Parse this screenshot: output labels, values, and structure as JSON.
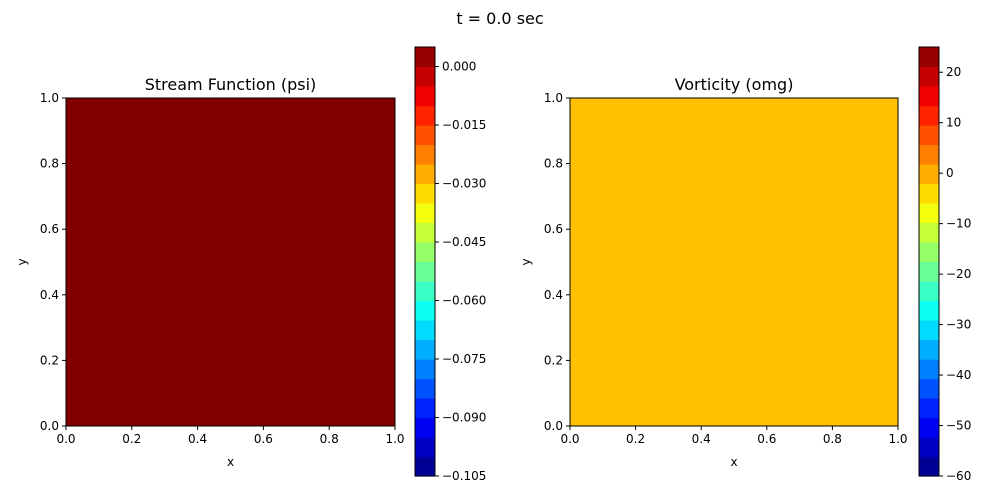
{
  "figure": {
    "suptitle": "t = 0.0 sec"
  },
  "chart_data": [
    {
      "type": "heatmap",
      "title": "Stream Function (psi)",
      "xlabel": "x",
      "ylabel": "y",
      "xlim": [
        0.0,
        1.0
      ],
      "ylim": [
        0.0,
        1.0
      ],
      "xticks": [
        "0.0",
        "0.2",
        "0.4",
        "0.6",
        "0.8",
        "1.0"
      ],
      "yticks": [
        "0.0",
        "0.2",
        "0.4",
        "0.6",
        "0.8",
        "1.0"
      ],
      "field_value": 0.0,
      "field_color": "#800000",
      "colormap": "jet",
      "colorbar": {
        "min": -0.105,
        "max": 0.005,
        "levels": 22,
        "ticks": [
          {
            "value": 0.0,
            "label": "0.000"
          },
          {
            "value": -0.015,
            "label": "−0.015"
          },
          {
            "value": -0.03,
            "label": "−0.030"
          },
          {
            "value": -0.045,
            "label": "−0.045"
          },
          {
            "value": -0.06,
            "label": "−0.060"
          },
          {
            "value": -0.075,
            "label": "−0.075"
          },
          {
            "value": -0.09,
            "label": "−0.090"
          },
          {
            "value": -0.105,
            "label": "−0.105"
          }
        ]
      }
    },
    {
      "type": "heatmap",
      "title": "Vorticity (omg)",
      "xlabel": "x",
      "ylabel": "y",
      "xlim": [
        0.0,
        1.0
      ],
      "ylim": [
        0.0,
        1.0
      ],
      "xticks": [
        "0.0",
        "0.2",
        "0.4",
        "0.6",
        "0.8",
        "1.0"
      ],
      "yticks": [
        "0.0",
        "0.2",
        "0.4",
        "0.6",
        "0.8",
        "1.0"
      ],
      "field_value": 0.0,
      "field_color": "#ffc000",
      "colormap": "jet",
      "colorbar": {
        "min": -60,
        "max": 25,
        "levels": 22,
        "ticks": [
          {
            "value": 20,
            "label": "20"
          },
          {
            "value": 10,
            "label": "10"
          },
          {
            "value": 0,
            "label": "0"
          },
          {
            "value": -10,
            "label": "−10"
          },
          {
            "value": -20,
            "label": "−20"
          },
          {
            "value": -30,
            "label": "−30"
          },
          {
            "value": -40,
            "label": "−40"
          },
          {
            "value": -50,
            "label": "−50"
          },
          {
            "value": -60,
            "label": "−60"
          }
        ]
      }
    }
  ]
}
